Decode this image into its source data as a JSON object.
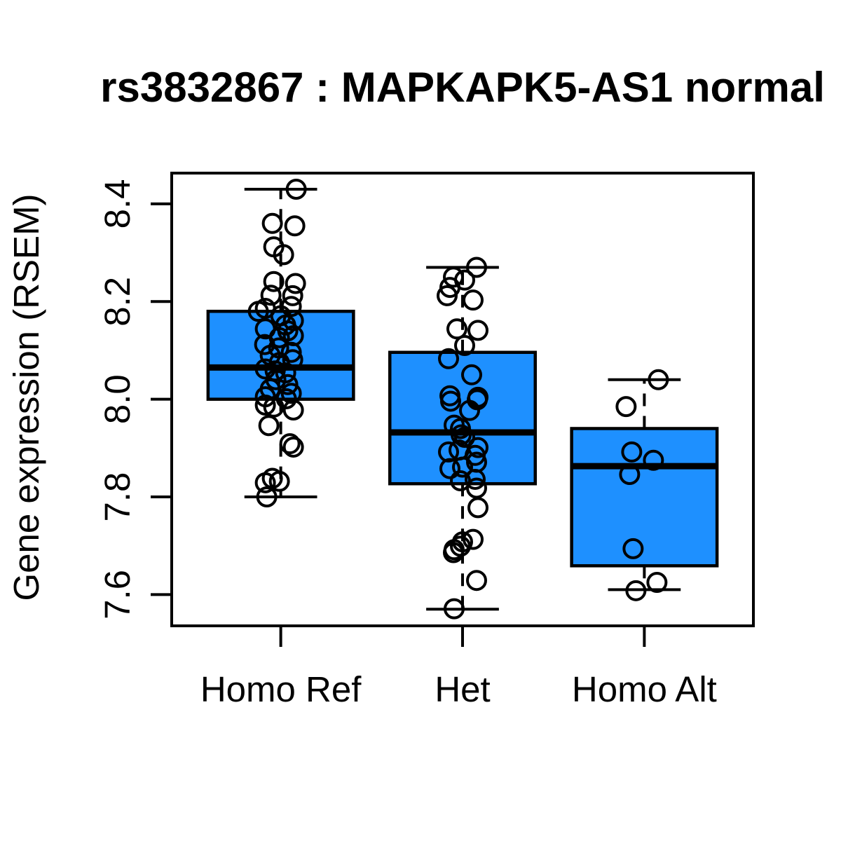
{
  "figure": {
    "title": "rs3832867 : MAPKAPK5-AS1 normal",
    "ylabel": "Gene expression (RSEM)"
  },
  "chart_data": {
    "type": "boxplot",
    "title": "rs3832867 : MAPKAPK5-AS1 normal",
    "ylabel": "Gene expression (RSEM)",
    "xlabel": "",
    "categories": [
      "Homo Ref",
      "Het",
      "Homo Alt"
    ],
    "yticks": [
      8.4,
      8.2,
      8.0,
      7.8,
      7.6
    ],
    "ytick_labels": [
      "8.4",
      "8.2",
      "8.0",
      "7.8",
      "7.6"
    ],
    "ylim": [
      7.536,
      8.463
    ],
    "xlim": [
      0.4,
      3.6
    ],
    "grid": false,
    "legend": null,
    "colors": {
      "box_fill": "#1E90FF",
      "stroke": "#000000",
      "background": "#FFFFFF"
    },
    "groups": [
      {
        "label": "Homo Ref",
        "x": 1,
        "n": 44,
        "stats": {
          "whisker_low": 7.8,
          "q1": 8.0,
          "median": 8.065,
          "q3": 8.18,
          "whisker_high": 8.43
        },
        "points": [
          [
            22,
            8.43
          ],
          [
            -12,
            8.36
          ],
          [
            20,
            8.355
          ],
          [
            -10,
            8.312
          ],
          [
            4,
            8.296
          ],
          [
            -10,
            8.241
          ],
          [
            21,
            8.237
          ],
          [
            -14,
            8.213
          ],
          [
            17,
            8.212
          ],
          [
            15,
            8.19
          ],
          [
            -22,
            8.186
          ],
          [
            -32,
            8.18
          ],
          [
            0,
            8.171
          ],
          [
            18,
            8.161
          ],
          [
            7,
            8.152
          ],
          [
            -22,
            8.144
          ],
          [
            10,
            8.14
          ],
          [
            18,
            8.13
          ],
          [
            -2,
            8.126
          ],
          [
            -23,
            8.112
          ],
          [
            -3,
            8.105
          ],
          [
            15,
            8.096
          ],
          [
            -15,
            8.09
          ],
          [
            17,
            8.081
          ],
          [
            -2,
            8.075
          ],
          [
            -22,
            8.062
          ],
          [
            -8,
            8.058
          ],
          [
            7,
            8.054
          ],
          [
            -7,
            8.04
          ],
          [
            10,
            8.03
          ],
          [
            -15,
            8.021
          ],
          [
            15,
            8.012
          ],
          [
            -22,
            8.005
          ],
          [
            8,
            8.001
          ],
          [
            -22,
            7.988
          ],
          [
            -10,
            7.984
          ],
          [
            18,
            7.978
          ],
          [
            -17,
            7.946
          ],
          [
            13,
            7.909
          ],
          [
            18,
            7.902
          ],
          [
            -12,
            7.838
          ],
          [
            -2,
            7.832
          ],
          [
            -22,
            7.829
          ],
          [
            -20,
            7.8
          ]
        ]
      },
      {
        "label": "Het",
        "x": 2,
        "n": 38,
        "stats": {
          "whisker_low": 7.57,
          "q1": 7.827,
          "median": 7.932,
          "q3": 8.096,
          "whisker_high": 8.27
        },
        "points": [
          [
            20,
            8.27
          ],
          [
            -13,
            8.25
          ],
          [
            3,
            8.244
          ],
          [
            -18,
            8.229
          ],
          [
            -22,
            8.212
          ],
          [
            15,
            8.203
          ],
          [
            -8,
            8.144
          ],
          [
            22,
            8.141
          ],
          [
            3,
            8.11
          ],
          [
            -20,
            8.083
          ],
          [
            13,
            8.05
          ],
          [
            -18,
            8.007
          ],
          [
            22,
            8.004
          ],
          [
            21,
            7.999
          ],
          [
            -17,
            7.996
          ],
          [
            10,
            7.977
          ],
          [
            -12,
            7.947
          ],
          [
            -3,
            7.94
          ],
          [
            -2,
            7.927
          ],
          [
            3,
            7.922
          ],
          [
            22,
            7.901
          ],
          [
            -5,
            7.896
          ],
          [
            -20,
            7.892
          ],
          [
            18,
            7.885
          ],
          [
            20,
            7.871
          ],
          [
            0,
            7.861
          ],
          [
            -18,
            7.858
          ],
          [
            18,
            7.836
          ],
          [
            -3,
            7.833
          ],
          [
            20,
            7.818
          ],
          [
            22,
            7.778
          ],
          [
            15,
            7.713
          ],
          [
            0,
            7.708
          ],
          [
            -3,
            7.699
          ],
          [
            -12,
            7.692
          ],
          [
            -13,
            7.686
          ],
          [
            20,
            7.629
          ],
          [
            -12,
            7.571
          ]
        ]
      },
      {
        "label": "Homo Alt",
        "x": 3,
        "n": 8,
        "stats": {
          "whisker_low": 7.61,
          "q1": 7.659,
          "median": 7.863,
          "q3": 7.94,
          "whisker_high": 8.04
        },
        "points": [
          [
            20,
            8.04
          ],
          [
            -26,
            7.985
          ],
          [
            -18,
            7.892
          ],
          [
            13,
            7.875
          ],
          [
            -21,
            7.846
          ],
          [
            -16,
            7.694
          ],
          [
            18,
            7.625
          ],
          [
            -12,
            7.608
          ]
        ]
      }
    ]
  }
}
